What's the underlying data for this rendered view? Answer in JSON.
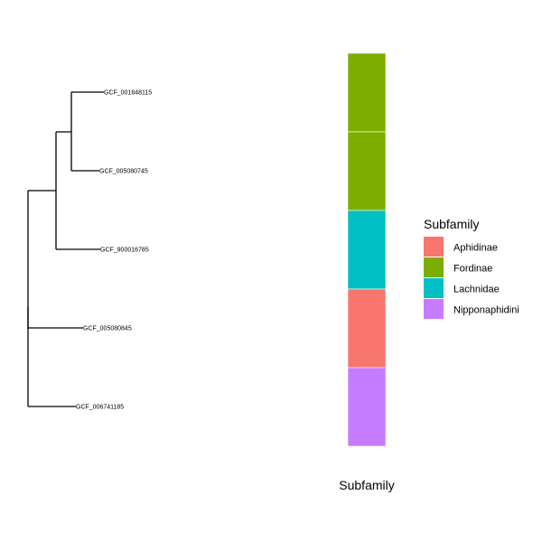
{
  "tree": {
    "tips": [
      {
        "id": "tip1",
        "label": "GCF_001648115"
      },
      {
        "id": "tip2",
        "label": "GCF_005080745"
      },
      {
        "id": "tip3",
        "label": "GCF_900016785"
      },
      {
        "id": "tip4",
        "label": "GCF_005080845"
      },
      {
        "id": "tip5",
        "label": "GCF_006741185"
      }
    ]
  },
  "chart_data": {
    "type": "bar",
    "orientation": "stacked-tiles",
    "x_title": "Subfamily",
    "legend_title": "Subfamily",
    "legend_placement": "right",
    "categories": [
      "Aphidinae",
      "Fordinae",
      "Lachnidae",
      "Nipponaphidini"
    ],
    "colors": {
      "Aphidinae": "#F8766D",
      "Fordinae": "#7CAE00",
      "Lachnidae": "#00BFC4",
      "Nipponaphidini": "#C77CFF"
    },
    "tiles": [
      {
        "tip": "GCF_001648115",
        "subfamily": "Fordinae"
      },
      {
        "tip": "GCF_005080745",
        "subfamily": "Fordinae"
      },
      {
        "tip": "GCF_900016785",
        "subfamily": "Lachnidae"
      },
      {
        "tip": "GCF_005080845",
        "subfamily": "Aphidinae"
      },
      {
        "tip": "GCF_006741185",
        "subfamily": "Nipponaphidini"
      }
    ]
  }
}
